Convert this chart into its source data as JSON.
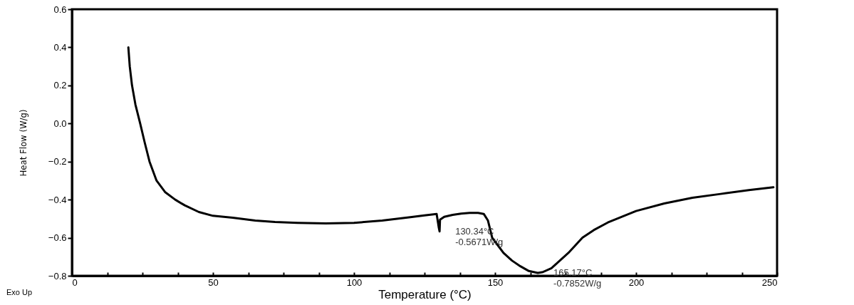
{
  "chart_data": {
    "type": "line",
    "xlabel": "Temperature (°C)",
    "ylabel": "Heat Flow (W/g)",
    "marker": "none",
    "line_style": "solid",
    "grid": false,
    "xlim": [
      0,
      250
    ],
    "ylim": [
      -0.8,
      0.6
    ],
    "xticks": [
      0,
      {
        "value": 12.5,
        "label": null
      },
      {
        "value": 25,
        "label": null
      },
      {
        "value": 37.5,
        "label": null
      },
      50,
      {
        "value": 62.5,
        "label": null
      },
      {
        "value": 75,
        "label": null
      },
      {
        "value": 87.5,
        "label": null
      },
      100,
      {
        "value": 112.5,
        "label": null
      },
      {
        "value": 125,
        "label": null
      },
      {
        "value": 137.5,
        "label": null
      },
      150,
      {
        "value": 162.5,
        "label": null
      },
      {
        "value": 175,
        "label": null
      },
      {
        "value": 187.5,
        "label": null
      },
      200,
      {
        "value": 212.5,
        "label": null
      },
      {
        "value": 225,
        "label": null
      },
      {
        "value": 237.5,
        "label": null
      },
      250
    ],
    "yticks": [
      -0.8,
      -0.6,
      -0.4,
      -0.2,
      {
        "value": 0,
        "label": "0.0"
      },
      0.2,
      0.4,
      0.6
    ],
    "series": [
      {
        "color": "#000000",
        "x": [
          20,
          20.5,
          21.3,
          22.5,
          24.2,
          25.8,
          27.5,
          30,
          33,
          36.6,
          40,
          45,
          50,
          57,
          65,
          72,
          80,
          90,
          100,
          110,
          120,
          125,
          129.3,
          130.1,
          130.34,
          130.5,
          132,
          135,
          138,
          141,
          144,
          146,
          147.5,
          149,
          151,
          153,
          156,
          159,
          162,
          165.17,
          167,
          170,
          173,
          176,
          181,
          185,
          190,
          195,
          200,
          210,
          220,
          230,
          240,
          248.7
        ],
        "values": [
          0.4,
          0.3,
          0.2,
          0.1,
          0.0,
          -0.1,
          -0.2,
          -0.3,
          -0.36,
          -0.4,
          -0.43,
          -0.465,
          -0.485,
          -0.495,
          -0.51,
          -0.517,
          -0.522,
          -0.525,
          -0.522,
          -0.51,
          -0.492,
          -0.483,
          -0.475,
          -0.55,
          -0.567,
          -0.505,
          -0.49,
          -0.48,
          -0.473,
          -0.47,
          -0.47,
          -0.475,
          -0.51,
          -0.6,
          -0.64,
          -0.68,
          -0.72,
          -0.75,
          -0.775,
          -0.785,
          -0.78,
          -0.76,
          -0.72,
          -0.68,
          -0.6,
          -0.56,
          -0.52,
          -0.49,
          -0.46,
          -0.42,
          -0.39,
          -0.37,
          -0.35,
          -0.335
        ]
      }
    ],
    "annotations": [
      {
        "text": "130.34°C\n-0.5671W/g",
        "x": 130.34,
        "y": -0.5671
      },
      {
        "text": "165.17°C\n-0.7852W/g",
        "x": 165.17,
        "y": -0.7852
      },
      "Exo Up"
    ]
  }
}
